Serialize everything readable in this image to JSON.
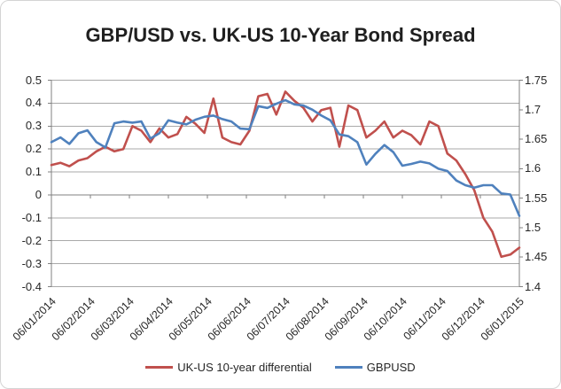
{
  "title": "GBP/USD vs. UK-US 10-Year Bond Spread",
  "colors": {
    "differential_line": "#C0504D",
    "gbpusd_line": "#4F81BD",
    "gridline": "#A9A9A9",
    "axis_line": "#808080",
    "title_text": "#1F1F1F",
    "axis_text": "#262626",
    "frame_border": "#D4D4D4",
    "background": "#FFFFFF"
  },
  "legend": {
    "position": "bottom",
    "items": [
      "UK-US 10-year differential",
      "GBPUSD"
    ]
  },
  "chart_data": {
    "type": "line",
    "title": "GBP/USD vs. UK-US 10-Year Bond Spread",
    "grid": "horizontal",
    "legend_position": "bottom",
    "x_axis": {
      "labels": [
        "06/01/2014",
        "06/02/2014",
        "06/03/2014",
        "06/04/2014",
        "06/05/2014",
        "06/06/2014",
        "06/07/2014",
        "06/08/2014",
        "06/09/2014",
        "06/10/2014",
        "06/11/2014",
        "06/12/2014",
        "06/01/2015"
      ],
      "date_format": "dd/mm/yyyy",
      "label_rotation_deg": -45
    },
    "left_axis": {
      "min": -0.4,
      "max": 0.5,
      "tick_step": 0.1,
      "labels": [
        "0.5",
        "0.4",
        "0.3",
        "0.2",
        "0.1",
        "0",
        "-0.1",
        "-0.2",
        "-0.3",
        "-0.4"
      ],
      "series_name": "UK-US 10-year differential"
    },
    "right_axis": {
      "min": 1.4,
      "max": 1.75,
      "tick_step": 0.05,
      "labels": [
        "1.75",
        "1.7",
        "1.65",
        "1.6",
        "1.55",
        "1.5",
        "1.45",
        "1.4"
      ],
      "series_name": "GBPUSD"
    },
    "x_unit": "weekly samples, 06/01/2014 to 06/01/2015",
    "series": [
      {
        "name": "UK-US 10-year differential",
        "axis": "left",
        "color": "#C0504D",
        "values": [
          0.13,
          0.14,
          0.125,
          0.15,
          0.16,
          0.19,
          0.21,
          0.19,
          0.2,
          0.3,
          0.28,
          0.23,
          0.29,
          0.25,
          0.265,
          0.34,
          0.31,
          0.27,
          0.42,
          0.25,
          0.23,
          0.22,
          0.28,
          0.43,
          0.44,
          0.35,
          0.45,
          0.41,
          0.38,
          0.32,
          0.37,
          0.38,
          0.21,
          0.39,
          0.37,
          0.25,
          0.28,
          0.32,
          0.25,
          0.28,
          0.26,
          0.22,
          0.32,
          0.3,
          0.18,
          0.15,
          0.09,
          0.02,
          -0.1,
          -0.16,
          -0.27,
          -0.26,
          -0.23
        ]
      },
      {
        "name": "GBPUSD",
        "axis": "right",
        "color": "#4F81BD",
        "values": [
          1.645,
          1.653,
          1.642,
          1.66,
          1.665,
          1.645,
          1.636,
          1.677,
          1.68,
          1.678,
          1.68,
          1.651,
          1.66,
          1.682,
          1.678,
          1.675,
          1.683,
          1.688,
          1.69,
          1.684,
          1.68,
          1.668,
          1.667,
          1.706,
          1.703,
          1.71,
          1.716,
          1.709,
          1.707,
          1.7,
          1.69,
          1.682,
          1.658,
          1.655,
          1.645,
          1.607,
          1.625,
          1.64,
          1.628,
          1.605,
          1.608,
          1.612,
          1.609,
          1.6,
          1.596,
          1.58,
          1.572,
          1.568,
          1.572,
          1.572,
          1.558,
          1.556,
          1.52
        ]
      }
    ]
  }
}
